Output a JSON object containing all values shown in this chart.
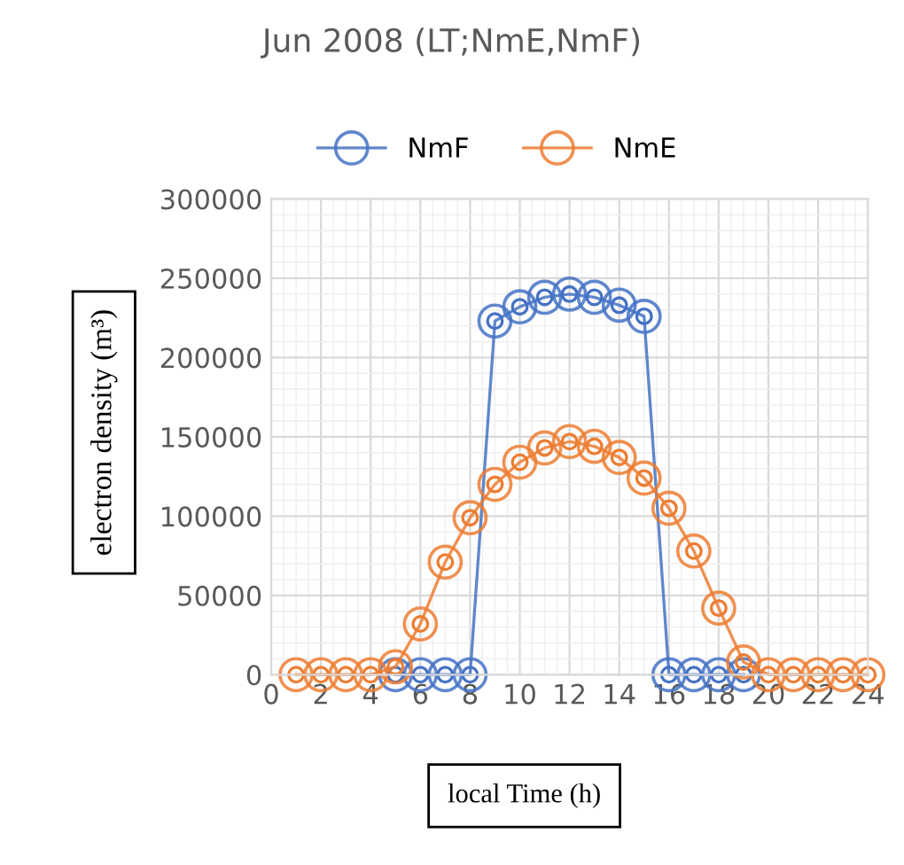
{
  "chart_data": {
    "type": "line",
    "title": "Jun 2008 (LT;NmE,NmF)",
    "xlabel": "local Time (h)",
    "ylabel": "electron density (m³)",
    "x": [
      1,
      2,
      3,
      4,
      5,
      6,
      7,
      8,
      9,
      10,
      11,
      12,
      13,
      14,
      15,
      16,
      17,
      18,
      19,
      20,
      21,
      22,
      23,
      24
    ],
    "series": [
      {
        "name": "NmF",
        "color": "#4472c4",
        "values": [
          null,
          null,
          null,
          null,
          0,
          0,
          0,
          0,
          223000,
          232000,
          238000,
          240000,
          238000,
          233000,
          226000,
          0,
          0,
          0,
          0,
          null,
          null,
          null,
          null,
          null
        ]
      },
      {
        "name": "NmE",
        "color": "#ed7d31",
        "values": [
          0,
          0,
          0,
          0,
          5000,
          32000,
          71000,
          99000,
          120000,
          134000,
          143000,
          147000,
          144000,
          137000,
          124000,
          105000,
          78000,
          42000,
          8000,
          0,
          0,
          0,
          0,
          0
        ]
      }
    ],
    "xlim": [
      0,
      24
    ],
    "xticks": [
      0,
      2,
      4,
      6,
      8,
      10,
      12,
      14,
      16,
      18,
      20,
      22,
      24
    ],
    "ylim": [
      0,
      300000
    ],
    "yticks": [
      0,
      50000,
      100000,
      150000,
      200000,
      250000,
      300000
    ],
    "grid": true,
    "legend": "top",
    "marker": "circle",
    "line_style": "solid"
  }
}
